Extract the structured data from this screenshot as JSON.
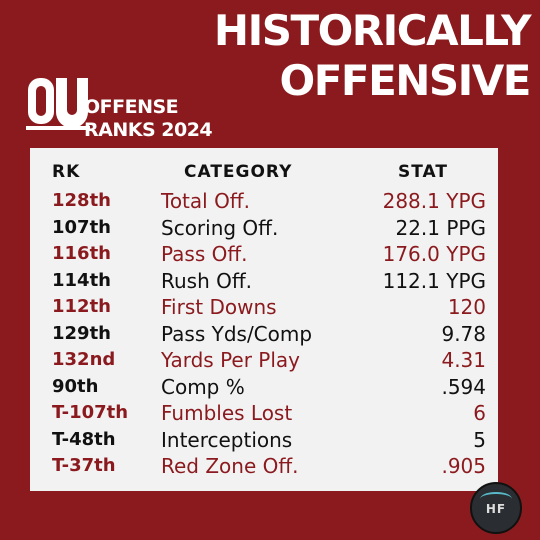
{
  "headline": [
    "HISTORICALLY",
    "OFFENSIVE"
  ],
  "logo": {
    "mark": "OU",
    "lines": [
      "OFFENSE",
      "RANKS 2024"
    ]
  },
  "table": {
    "headers": {
      "rank": "RK",
      "category": "CATEGORY",
      "stat": "STAT"
    },
    "rows": [
      {
        "rank": "128th",
        "category": "Total Off.",
        "stat": "288.1 YPG"
      },
      {
        "rank": "107th",
        "category": "Scoring Off.",
        "stat": "22.1 PPG"
      },
      {
        "rank": "116th",
        "category": "Pass Off.",
        "stat": "176.0 YPG"
      },
      {
        "rank": "114th",
        "category": "Rush Off.",
        "stat": "112.1 YPG"
      },
      {
        "rank": "112th",
        "category": "First Downs",
        "stat": "120"
      },
      {
        "rank": "129th",
        "category": "Pass Yds/Comp",
        "stat": "9.78"
      },
      {
        "rank": "132nd",
        "category": "Yards Per Play",
        "stat": "4.31"
      },
      {
        "rank": "90th",
        "category": "Comp %",
        "stat": ".594"
      },
      {
        "rank": "T-107th",
        "category": "Fumbles Lost",
        "stat": "6"
      },
      {
        "rank": "T-48th",
        "category": "Interceptions",
        "stat": "5"
      },
      {
        "rank": "T-37th",
        "category": "Red Zone Off.",
        "stat": ".905"
      }
    ]
  },
  "badge": {
    "text": "HF"
  },
  "colors": {
    "crimson": "#8b1a1e",
    "card": "#f2f2f2",
    "text": "#111111"
  }
}
